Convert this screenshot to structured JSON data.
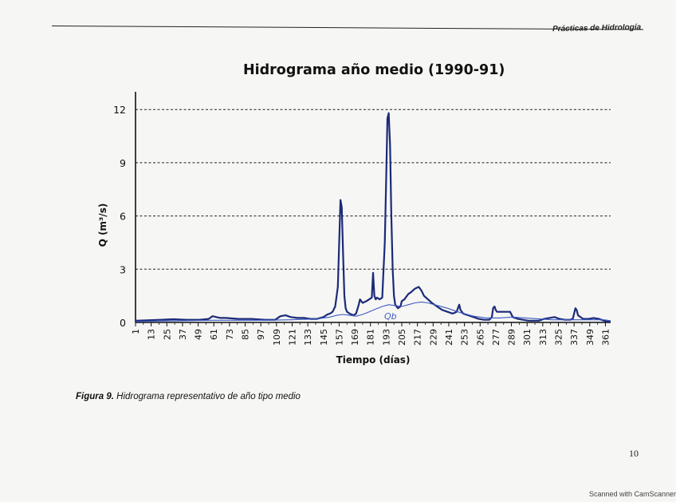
{
  "page": {
    "header_text": "Prácticas de Hidrología",
    "figure_label": "Figura 9.",
    "figure_caption": "Hidrograma representativo de año tipo medio",
    "page_number": "10",
    "scanner_note": "Scanned with CamScanner"
  },
  "chart_data": {
    "type": "line",
    "title": "Hidrograma año medio (1990-91)",
    "xlabel": "Tiempo (días)",
    "ylabel": "Q (m³/s)",
    "xlim": [
      1,
      365
    ],
    "ylim": [
      0,
      13
    ],
    "yticks": [
      0,
      3,
      6,
      9,
      12
    ],
    "xticks": [
      1,
      13,
      25,
      37,
      49,
      61,
      73,
      85,
      97,
      109,
      121,
      133,
      145,
      157,
      169,
      181,
      193,
      205,
      217,
      229,
      241,
      253,
      265,
      277,
      289,
      301,
      313,
      325,
      337,
      349,
      361
    ],
    "grid": "horizontal-dashed",
    "annotation": "Qb",
    "colors": {
      "total_flow": "#1c2a78",
      "baseflow": "#3d5cc4"
    },
    "series": [
      {
        "name": "",
        "x": [
          1,
          10,
          20,
          30,
          40,
          50,
          57,
          60,
          63,
          66,
          70,
          80,
          90,
          100,
          108,
          112,
          116,
          120,
          125,
          130,
          135,
          140,
          145,
          148,
          150,
          152,
          154,
          156,
          158,
          159,
          160,
          161,
          162,
          163,
          165,
          168,
          170,
          172,
          173,
          175,
          178,
          180,
          182,
          183,
          184,
          185,
          186,
          188,
          190,
          192,
          193,
          194,
          195,
          196,
          197,
          198,
          199,
          200,
          202,
          204,
          205,
          207,
          210,
          212,
          215,
          218,
          220,
          222,
          225,
          228,
          232,
          236,
          240,
          244,
          247,
          248,
          249,
          250,
          252,
          256,
          260,
          264,
          268,
          272,
          274,
          275,
          276,
          277,
          278,
          280,
          284,
          288,
          290,
          292,
          294,
          298,
          302,
          306,
          310,
          314,
          318,
          322,
          326,
          330,
          334,
          336,
          337,
          338,
          339,
          340,
          344,
          348,
          352,
          356,
          358,
          360,
          362,
          365
        ],
        "values": [
          0.1,
          0.12,
          0.15,
          0.18,
          0.15,
          0.15,
          0.2,
          0.35,
          0.3,
          0.25,
          0.25,
          0.2,
          0.2,
          0.15,
          0.15,
          0.35,
          0.4,
          0.3,
          0.25,
          0.25,
          0.2,
          0.2,
          0.3,
          0.45,
          0.5,
          0.6,
          0.9,
          2.0,
          6.9,
          6.5,
          4.0,
          1.5,
          0.8,
          0.6,
          0.5,
          0.4,
          0.5,
          1.0,
          1.3,
          1.1,
          1.2,
          1.3,
          1.4,
          2.8,
          1.5,
          1.3,
          1.4,
          1.3,
          1.4,
          4.5,
          8.0,
          11.5,
          11.8,
          10.0,
          6.0,
          3.0,
          1.5,
          1.0,
          0.8,
          0.9,
          1.2,
          1.3,
          1.6,
          1.7,
          1.9,
          2.0,
          1.8,
          1.5,
          1.3,
          1.1,
          0.9,
          0.7,
          0.6,
          0.5,
          0.6,
          0.8,
          1.0,
          0.7,
          0.5,
          0.4,
          0.3,
          0.2,
          0.15,
          0.15,
          0.3,
          0.8,
          0.9,
          0.7,
          0.6,
          0.6,
          0.6,
          0.6,
          0.3,
          0.25,
          0.2,
          0.15,
          0.1,
          0.1,
          0.1,
          0.2,
          0.25,
          0.3,
          0.2,
          0.15,
          0.15,
          0.2,
          0.5,
          0.8,
          0.7,
          0.4,
          0.2,
          0.2,
          0.25,
          0.2,
          0.15,
          0.1,
          0.05,
          0.05
        ]
      },
      {
        "name": "Qb",
        "x": [
          1,
          20,
          40,
          60,
          80,
          100,
          120,
          140,
          150,
          155,
          160,
          165,
          170,
          175,
          180,
          185,
          190,
          195,
          200,
          205,
          210,
          215,
          220,
          225,
          230,
          240,
          250,
          260,
          270,
          280,
          290,
          300,
          310,
          320,
          330,
          340,
          350,
          360,
          365
        ],
        "values": [
          0.05,
          0.08,
          0.1,
          0.12,
          0.12,
          0.12,
          0.15,
          0.2,
          0.3,
          0.4,
          0.45,
          0.4,
          0.35,
          0.45,
          0.6,
          0.75,
          0.9,
          1.0,
          0.95,
          0.9,
          1.0,
          1.1,
          1.15,
          1.1,
          1.0,
          0.8,
          0.55,
          0.35,
          0.25,
          0.25,
          0.3,
          0.25,
          0.2,
          0.15,
          0.15,
          0.15,
          0.15,
          0.15,
          0.1
        ]
      }
    ]
  }
}
